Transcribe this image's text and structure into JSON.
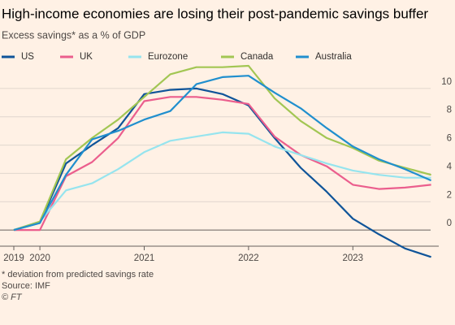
{
  "chart_data": {
    "type": "line",
    "title": "High-income economies are losing their post-pandemic savings buffer",
    "subtitle": "Excess savings* as a % of GDP",
    "footnote": "* deviation from predicted savings rate",
    "source": "Source: IMF",
    "credit": "© FT",
    "x": [
      2019.75,
      2020,
      2020.25,
      2020.5,
      2020.75,
      2021,
      2021.25,
      2021.5,
      2021.75,
      2022,
      2022.25,
      2022.5,
      2022.75,
      2023,
      2023.25,
      2023.5,
      2023.75
    ],
    "series": [
      {
        "name": "US",
        "color": "#0f5499",
        "values": [
          0,
          0.5,
          4.7,
          6.0,
          7.2,
          9.6,
          9.9,
          10.0,
          9.6,
          8.8,
          6.5,
          4.4,
          2.7,
          0.8,
          -0.3,
          -1.3,
          -1.9
        ]
      },
      {
        "name": "UK",
        "color": "#eb5e8d",
        "values": [
          0,
          0,
          3.8,
          4.8,
          6.5,
          9.1,
          9.4,
          9.4,
          9.2,
          8.9,
          6.6,
          5.3,
          4.5,
          3.2,
          2.9,
          3.0,
          3.2
        ]
      },
      {
        "name": "Eurozone",
        "color": "#96e4ee",
        "values": [
          0,
          0.6,
          2.8,
          3.3,
          4.3,
          5.5,
          6.3,
          6.6,
          6.9,
          6.8,
          5.9,
          5.3,
          4.7,
          4.2,
          3.9,
          3.7,
          3.7
        ]
      },
      {
        "name": "Canada",
        "color": "#a2c653",
        "values": [
          0,
          0.6,
          5.0,
          6.5,
          7.8,
          9.4,
          11.0,
          11.5,
          11.5,
          11.6,
          9.3,
          7.7,
          6.5,
          5.8,
          4.9,
          4.4,
          3.9
        ]
      },
      {
        "name": "Australia",
        "color": "#208fce",
        "values": [
          0,
          0.5,
          3.9,
          6.4,
          7.0,
          7.8,
          8.4,
          10.3,
          10.8,
          10.9,
          9.7,
          8.6,
          7.2,
          5.9,
          5.0,
          4.3,
          3.5
        ]
      }
    ],
    "xlim": [
      2019.75,
      2023.8
    ],
    "xticks": [
      {
        "value": 2019.75,
        "label": "2019"
      },
      2020,
      2021,
      2022,
      2023
    ],
    "ylim": [
      -2,
      12
    ],
    "yticks": [
      0,
      2,
      4,
      6,
      8,
      10
    ],
    "grid": true
  }
}
